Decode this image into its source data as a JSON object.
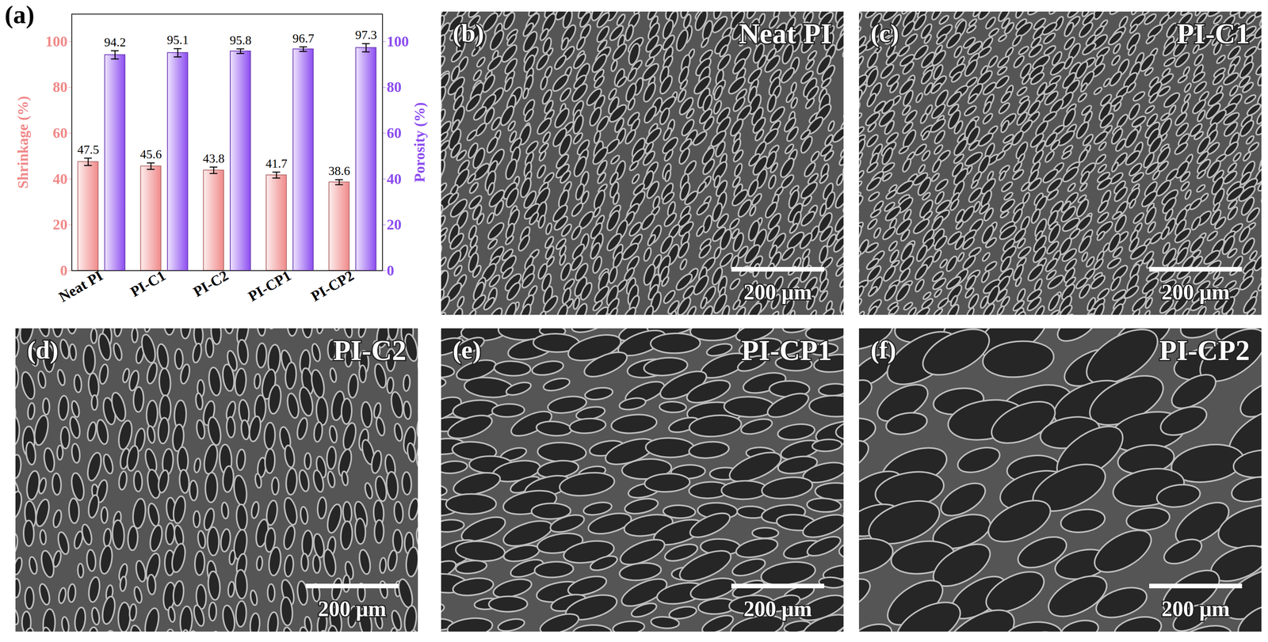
{
  "chart_data": {
    "type": "bar",
    "panel": "(a)",
    "categories": [
      "Neat PI",
      "PI-C1",
      "PI-C2",
      "PI-CP1",
      "PI-CP2"
    ],
    "series": [
      {
        "color": "#f08a8a",
        "values": [
          47.5,
          45.6,
          43.8,
          41.7,
          38.6
        ],
        "errors": [
          1.6,
          1.4,
          1.4,
          1.3,
          1.1
        ]
      },
      {
        "axis": "y2",
        "color": "#8c4df0",
        "values": [
          94.2,
          95.1,
          95.8,
          96.7,
          97.3
        ],
        "errors": [
          1.8,
          1.8,
          1.0,
          1.0,
          1.8
        ]
      }
    ],
    "ylabel": "Shrinkage (%)",
    "y2label": "Porosity (%)",
    "ylim": [
      0,
      112
    ],
    "yticks": [
      0,
      20,
      40,
      60,
      80,
      100
    ],
    "y2lim": [
      0,
      112
    ],
    "y2ticks": [
      0,
      20,
      40,
      60,
      80,
      100
    ],
    "data_labels": true
  },
  "images": [
    {
      "panel": "(b)",
      "label": "Neat PI",
      "scale_bar": "200 μm"
    },
    {
      "panel": "(c)",
      "label": "PI-C1",
      "scale_bar": "200 μm"
    },
    {
      "panel": "(d)",
      "label": "PI-C2",
      "scale_bar": "200 μm"
    },
    {
      "panel": "(e)",
      "label": "PI-CP1",
      "scale_bar": "200 μm"
    },
    {
      "panel": "(f)",
      "label": "PI-CP2",
      "scale_bar": "200 μm"
    }
  ]
}
